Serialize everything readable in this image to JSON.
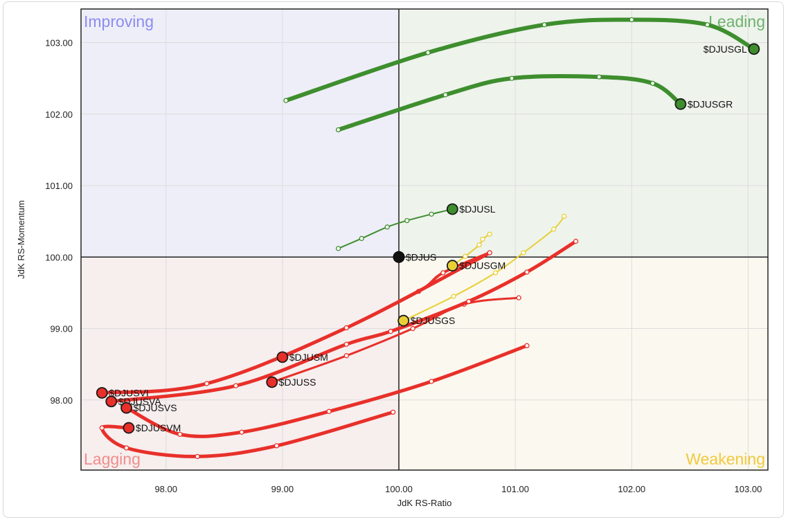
{
  "chart_data": {
    "type": "scatter",
    "xlabel": "JdK RS-Ratio",
    "ylabel": "JdK RS-Momentum",
    "xlim": [
      97.27,
      103.17
    ],
    "ylim": [
      97.02,
      103.47
    ],
    "x_ticks": [
      "98.00",
      "99.00",
      "100.00",
      "101.00",
      "102.00",
      "103.00"
    ],
    "y_ticks": [
      "98.00",
      "99.00",
      "100.00",
      "101.00",
      "102.00",
      "103.00"
    ],
    "grid": true,
    "center": [
      100,
      100
    ],
    "quadrants": {
      "improving": {
        "label": "Improving",
        "color": "#8c8cf0",
        "fill": "#eeeef8"
      },
      "leading": {
        "label": "Leading",
        "color": "#6fb26f",
        "fill": "#eef3ec"
      },
      "weakening": {
        "label": "Weakening",
        "color": "#f0c93c",
        "fill": "#fbf8ef"
      },
      "lagging": {
        "label": "Lagging",
        "color": "#f08c8c",
        "fill": "#f7eeee"
      }
    },
    "series": [
      {
        "name": "$DJUSGL",
        "color": "#3e8e2e",
        "width": 6,
        "points": [
          [
            99.03,
            102.19
          ],
          [
            100.25,
            102.86
          ],
          [
            101.25,
            103.25
          ],
          [
            102.0,
            103.32
          ],
          [
            102.65,
            103.25
          ],
          [
            103.05,
            102.91
          ]
        ]
      },
      {
        "name": "$DJUSGR",
        "color": "#3e8e2e",
        "width": 6,
        "points": [
          [
            99.48,
            101.78
          ],
          [
            100.4,
            102.27
          ],
          [
            100.97,
            102.5
          ],
          [
            101.72,
            102.52
          ],
          [
            102.18,
            102.43
          ],
          [
            102.42,
            102.14
          ]
        ]
      },
      {
        "name": "$DJUSL",
        "color": "#3e8e2e",
        "width": 2,
        "points": [
          [
            99.48,
            100.12
          ],
          [
            99.68,
            100.26
          ],
          [
            99.9,
            100.42
          ],
          [
            100.07,
            100.51
          ],
          [
            100.28,
            100.6
          ],
          [
            100.46,
            100.67
          ]
        ]
      },
      {
        "name": "$DJUSGM",
        "color": "#e8cf35",
        "width": 2,
        "points": [
          [
            100.78,
            100.32
          ],
          [
            100.72,
            100.25
          ],
          [
            100.69,
            100.17
          ],
          [
            100.57,
            100.01
          ],
          [
            100.46,
            99.88
          ]
        ]
      },
      {
        "name": "$DJUSGS",
        "color": "#e8cf35",
        "width": 2,
        "points": [
          [
            101.42,
            100.57
          ],
          [
            101.33,
            100.39
          ],
          [
            101.07,
            100.06
          ],
          [
            100.83,
            99.78
          ],
          [
            100.47,
            99.45
          ],
          [
            100.04,
            99.11
          ]
        ]
      },
      {
        "name": "$DJUSM",
        "color": "#e8302a",
        "width": 4,
        "points": [
          [
            100.78,
            100.06
          ],
          [
            100.38,
            99.78
          ],
          [
            100.17,
            99.52
          ],
          [
            99.55,
            99.01
          ],
          [
            99.0,
            98.6
          ]
        ]
      },
      {
        "name": "$DJUSS",
        "color": "#e8302a",
        "width": 3,
        "points": [
          [
            101.03,
            99.43
          ],
          [
            100.56,
            99.34
          ],
          [
            100.12,
            99.0
          ],
          [
            99.55,
            98.62
          ],
          [
            98.91,
            98.25
          ]
        ]
      },
      {
        "name": "$DJUSVI",
        "color": "#e8302a",
        "width": 5,
        "points": [
          [
            100.78,
            100.06
          ],
          [
            99.55,
            99.01
          ],
          [
            98.35,
            98.23
          ],
          [
            97.45,
            98.1
          ]
        ]
      },
      {
        "name": "$DJUSVA",
        "color": "#e8302a",
        "width": 5,
        "points": [
          [
            101.52,
            100.22
          ],
          [
            101.1,
            99.79
          ],
          [
            100.6,
            99.38
          ],
          [
            99.93,
            98.96
          ],
          [
            99.55,
            98.78
          ],
          [
            98.6,
            98.2
          ],
          [
            97.53,
            97.98
          ]
        ]
      },
      {
        "name": "$DJUSVS",
        "color": "#e8302a",
        "width": 5,
        "points": [
          [
            101.1,
            98.76
          ],
          [
            100.28,
            98.26
          ],
          [
            99.4,
            97.84
          ],
          [
            98.65,
            97.55
          ],
          [
            98.12,
            97.52
          ],
          [
            97.66,
            97.89
          ]
        ]
      },
      {
        "name": "$DJUSVM",
        "color": "#e8302a",
        "width": 5,
        "points": [
          [
            99.95,
            97.83
          ],
          [
            98.95,
            97.36
          ],
          [
            98.27,
            97.21
          ],
          [
            97.66,
            97.33
          ],
          [
            97.45,
            97.61
          ],
          [
            97.68,
            97.61
          ]
        ]
      }
    ],
    "benchmark": {
      "name": "$DJUS",
      "x": 100.0,
      "y": 100.0,
      "color": "#111111"
    }
  }
}
